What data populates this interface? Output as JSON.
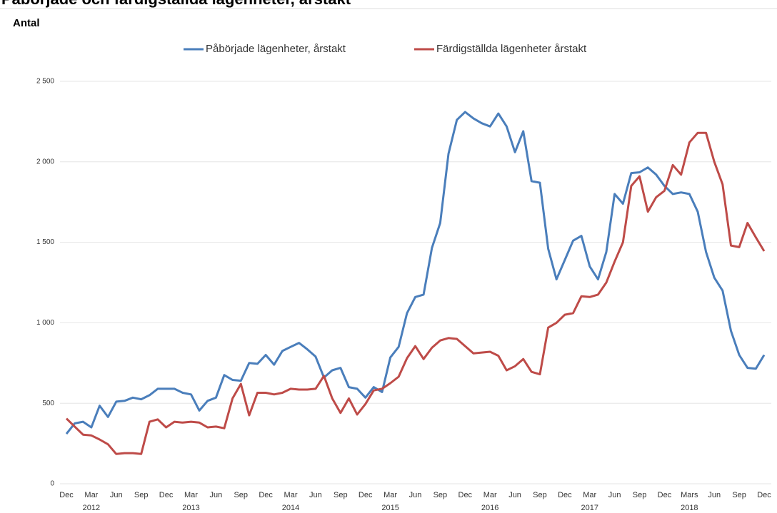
{
  "chart_data": {
    "type": "line",
    "title": "Påbörjade och färdigställda lägenheter, årstakt",
    "ylabel": "Antal",
    "categories": [
      "Dec",
      null,
      null,
      "Mar",
      null,
      null,
      "Jun",
      null,
      null,
      "Sep",
      null,
      null,
      "Dec",
      null,
      null,
      "Mar",
      null,
      null,
      "Jun",
      null,
      null,
      "Sep",
      null,
      null,
      "Dec",
      null,
      null,
      "Mar",
      null,
      null,
      "Jun",
      null,
      null,
      "Sep",
      null,
      null,
      "Dec",
      null,
      null,
      "Mar",
      null,
      null,
      "Jun",
      null,
      null,
      "Sep",
      null,
      null,
      "Dec",
      null,
      null,
      "Mar",
      null,
      null,
      "Jun",
      null,
      null,
      "Sep",
      null,
      null,
      "Dec",
      null,
      null,
      "Mar",
      null,
      null,
      "Jun",
      null,
      null,
      "Sep",
      null,
      null,
      "Dec",
      null,
      null,
      "Mars",
      null,
      null,
      "Jun",
      null,
      null,
      "Sep",
      null,
      null,
      "Dec"
    ],
    "years": [
      "2012",
      "2013",
      "2014",
      "2015",
      "2016",
      "2017",
      "2018"
    ],
    "series": [
      {
        "name": "Påbörjade lägenheter, årstakt",
        "color": "#4a7ebb",
        "values": [
          310,
          375,
          385,
          350,
          485,
          415,
          510,
          515,
          535,
          525,
          550,
          590,
          590,
          590,
          565,
          555,
          455,
          515,
          535,
          675,
          645,
          640,
          750,
          745,
          800,
          740,
          825,
          850,
          875,
          835,
          790,
          660,
          705,
          720,
          600,
          590,
          535,
          600,
          570,
          785,
          850,
          1060,
          1160,
          1175,
          1465,
          1620,
          2050,
          2260,
          2310,
          2270,
          2240,
          2220,
          2300,
          2220,
          2060,
          2190,
          1880,
          1870,
          1460,
          1270,
          1390,
          1510,
          1540,
          1350,
          1270,
          1440,
          1800,
          1740,
          1930,
          1935,
          1965,
          1920,
          1850,
          1800,
          1810,
          1800,
          1690,
          1440,
          1280,
          1200,
          950,
          800,
          720,
          715,
          800
        ]
      },
      {
        "name": "Färdigställda lägenheter årstakt",
        "color": "#be4b48",
        "values": [
          405,
          355,
          305,
          300,
          275,
          245,
          185,
          190,
          190,
          185,
          385,
          400,
          350,
          385,
          380,
          385,
          380,
          350,
          355,
          345,
          530,
          620,
          425,
          565,
          565,
          555,
          565,
          590,
          585,
          585,
          590,
          670,
          530,
          440,
          530,
          430,
          495,
          580,
          590,
          625,
          665,
          780,
          855,
          775,
          845,
          890,
          905,
          900,
          855,
          810,
          815,
          820,
          795,
          705,
          730,
          775,
          695,
          680,
          970,
          1000,
          1050,
          1060,
          1165,
          1160,
          1175,
          1250,
          1380,
          1500,
          1850,
          1910,
          1690,
          1780,
          1820,
          1980,
          1920,
          2120,
          2180,
          2180,
          2000,
          1860,
          1480,
          1470,
          1620,
          1530,
          1445
        ]
      }
    ],
    "ylim": [
      0,
      2500
    ],
    "yticks": [
      0,
      500,
      {
        "value": 1000,
        "label": "1 000"
      },
      {
        "value": 1500,
        "label": "1 500"
      },
      {
        "value": 2000,
        "label": "2 000"
      },
      {
        "value": 2500,
        "label": "2 500"
      }
    ],
    "grid": true,
    "legend": "top"
  }
}
